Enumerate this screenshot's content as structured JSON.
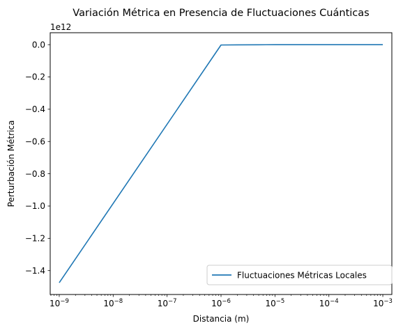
{
  "chart_data": {
    "type": "line",
    "title": "Variación Métrica en Presencia de Fluctuaciones Cuánticas",
    "xlabel": "Distancia (m)",
    "ylabel": "Perturbación Métrica",
    "y_offset_label": "1e12",
    "xscale": "log",
    "xlim": [
      6.8e-10,
      0.00147
    ],
    "ylim": [
      -1.548,
      0.074
    ],
    "x_ticks": [
      {
        "value": 1e-09,
        "base": "10",
        "exp": "−9"
      },
      {
        "value": 1e-08,
        "base": "10",
        "exp": "−8"
      },
      {
        "value": 1e-07,
        "base": "10",
        "exp": "−7"
      },
      {
        "value": 1e-06,
        "base": "10",
        "exp": "−6"
      },
      {
        "value": 1e-05,
        "base": "10",
        "exp": "−5"
      },
      {
        "value": 0.0001,
        "base": "10",
        "exp": "−4"
      },
      {
        "value": 0.001,
        "base": "10",
        "exp": "−3"
      }
    ],
    "y_ticks": [
      {
        "value": 0.0,
        "label": "0.0"
      },
      {
        "value": -0.2,
        "label": "−0.2"
      },
      {
        "value": -0.4,
        "label": "−0.4"
      },
      {
        "value": -0.6,
        "label": "−0.6"
      },
      {
        "value": -0.8,
        "label": "−0.8"
      },
      {
        "value": -1.0,
        "label": "−1.0"
      },
      {
        "value": -1.2,
        "label": "−1.2"
      },
      {
        "value": -1.4,
        "label": "−1.4"
      }
    ],
    "grid": false,
    "legend_position": "bottom-right",
    "series": [
      {
        "name": "Fluctuaciones Métricas Locales",
        "color": "#1f77b4",
        "x": [
          1e-09,
          1e-06,
          2e-06,
          5e-06,
          1e-05,
          0.0001,
          0.001
        ],
        "y": [
          -1.475,
          -0.002,
          -0.001,
          -0.0005,
          -0.0003,
          -0.0001,
          0.0
        ]
      }
    ]
  }
}
